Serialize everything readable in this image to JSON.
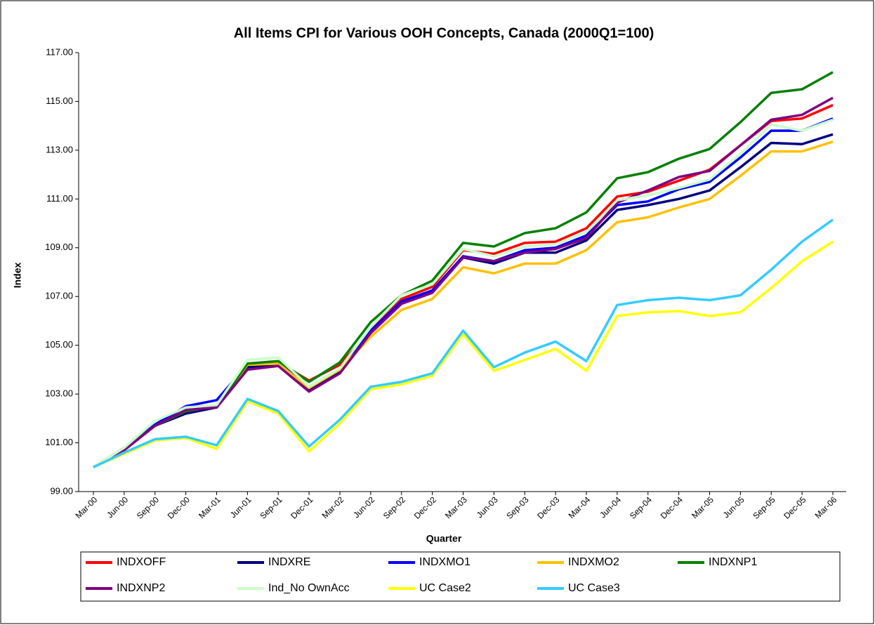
{
  "chart_data": {
    "type": "line",
    "title": "All Items CPI for Various OOH Concepts, Canada (2000Q1=100)",
    "x_label": "Quarter",
    "y_label": "Index",
    "categories": [
      "Mar-00",
      "Jun-00",
      "Sep-00",
      "Dec-00",
      "Mar-01",
      "Jun-01",
      "Sep-01",
      "Dec-01",
      "Mar-02",
      "Jun-02",
      "Sep-02",
      "Dec-02",
      "Mar-03",
      "Jun-03",
      "Sep-03",
      "Dec-03",
      "Mar-04",
      "Jun-04",
      "Sep-04",
      "Dec-04",
      "Mar-05",
      "Jun-05",
      "Sep-05",
      "Dec-05",
      "Mar-06"
    ],
    "ylim": [
      99,
      117
    ],
    "yticks": [
      {
        "value": 99,
        "label": "99.00"
      },
      {
        "value": 101,
        "label": "101.00"
      },
      {
        "value": 103,
        "label": "103.00"
      },
      {
        "value": 105,
        "label": "105.00"
      },
      {
        "value": 107,
        "label": "107.00"
      },
      {
        "value": 109,
        "label": "109.00"
      },
      {
        "value": 111,
        "label": "111.00"
      },
      {
        "value": 113,
        "label": "113.00"
      },
      {
        "value": 115,
        "label": "115.00"
      },
      {
        "value": 117,
        "label": "117.00"
      }
    ],
    "grid": false,
    "legend": "bottom",
    "series": [
      {
        "name": "INDXOFF",
        "color": "#ff0000",
        "values": [
          100,
          100.8,
          101.7,
          102.3,
          102.5,
          104.2,
          104.3,
          103.55,
          104.2,
          105.6,
          106.9,
          107.4,
          108.9,
          108.75,
          109.2,
          109.25,
          109.8,
          111.1,
          111.3,
          111.75,
          112.2,
          113.2,
          114.2,
          114.3,
          114.85
        ]
      },
      {
        "name": "INDXRE",
        "color": "#000080",
        "values": [
          100,
          100.7,
          101.7,
          102.2,
          102.45,
          104.1,
          104.2,
          103.2,
          103.9,
          105.6,
          106.75,
          107.2,
          108.6,
          108.35,
          108.8,
          108.8,
          109.3,
          110.55,
          110.75,
          111.0,
          111.35,
          112.3,
          113.3,
          113.25,
          113.65
        ]
      },
      {
        "name": "INDXMO1",
        "color": "#0000ff",
        "values": [
          100,
          100.75,
          101.75,
          102.5,
          102.75,
          104.2,
          104.3,
          103.3,
          104.0,
          105.6,
          106.8,
          107.25,
          108.65,
          108.45,
          108.9,
          109.0,
          109.5,
          110.75,
          110.9,
          111.4,
          111.7,
          112.7,
          113.8,
          113.8,
          114.3
        ]
      },
      {
        "name": "INDXMO2",
        "color": "#ffc000",
        "values": [
          100,
          100.7,
          101.7,
          102.3,
          102.5,
          104.2,
          104.25,
          103.25,
          104.0,
          105.35,
          106.45,
          106.9,
          108.2,
          107.95,
          108.35,
          108.35,
          108.9,
          110.05,
          110.25,
          110.65,
          111.0,
          111.95,
          112.95,
          112.95,
          113.35
        ]
      },
      {
        "name": "INDXNP1",
        "color": "#008000",
        "values": [
          100,
          100.75,
          101.7,
          102.3,
          102.5,
          104.25,
          104.35,
          103.5,
          104.3,
          105.95,
          107.05,
          107.65,
          109.2,
          109.05,
          109.6,
          109.8,
          110.45,
          111.85,
          112.1,
          112.65,
          113.05,
          114.15,
          115.35,
          115.5,
          116.2
        ]
      },
      {
        "name": "INDXNP2",
        "color": "#800080",
        "values": [
          100,
          100.7,
          101.7,
          102.35,
          102.45,
          104.0,
          104.15,
          103.1,
          103.85,
          105.5,
          106.7,
          107.15,
          108.6,
          108.45,
          108.8,
          108.95,
          109.4,
          110.85,
          111.35,
          111.9,
          112.15,
          113.2,
          114.25,
          114.45,
          115.15
        ]
      },
      {
        "name": "Ind_No OwnAcc",
        "color": "#ccffcc",
        "values": [
          100,
          100.8,
          101.9,
          102.45,
          102.55,
          104.4,
          104.5,
          103.3,
          104.05,
          105.75,
          107.05,
          107.5,
          108.95,
          108.65,
          109.05,
          109.15,
          109.65,
          110.95,
          111.15,
          111.45,
          111.8,
          112.85,
          114.05,
          113.8,
          114.25
        ]
      },
      {
        "name": "UC Case2",
        "color": "#ffff00",
        "values": [
          100,
          100.55,
          101.1,
          101.2,
          100.75,
          102.7,
          102.2,
          100.65,
          101.8,
          103.2,
          103.4,
          103.75,
          105.45,
          103.95,
          104.4,
          104.85,
          103.95,
          106.2,
          106.35,
          106.4,
          106.2,
          106.35,
          107.35,
          108.45,
          109.25
        ]
      },
      {
        "name": "UC Case3",
        "color": "#33ccff",
        "values": [
          100,
          100.6,
          101.15,
          101.25,
          100.9,
          102.8,
          102.3,
          100.85,
          101.95,
          103.3,
          103.5,
          103.85,
          105.6,
          104.1,
          104.7,
          105.15,
          104.35,
          106.65,
          106.85,
          106.95,
          106.85,
          107.05,
          108.1,
          109.25,
          110.15
        ]
      }
    ]
  }
}
